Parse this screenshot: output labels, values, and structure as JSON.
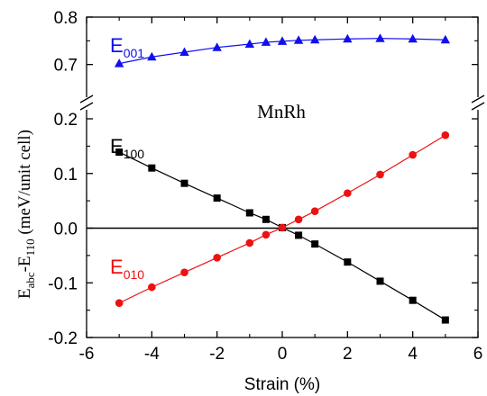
{
  "chart_data": {
    "type": "line",
    "title": "MnRh",
    "xlabel": "Strain (%)",
    "ylabel": {
      "e1": "E",
      "s1": "abc",
      "mid": "-E",
      "s2": "110",
      "unit": " (meV/unit cell)"
    },
    "xlim": [
      -6,
      6
    ],
    "xticks": [
      "-6",
      "-4",
      "-2",
      "0",
      "2",
      "4",
      "6"
    ],
    "ylim_lower": [
      -0.2,
      0.2
    ],
    "yticks_lower": [
      "-0.2",
      "-0.1",
      "0.0",
      "0.1",
      "0.2"
    ],
    "ylim_upper": [
      0.65,
      0.8
    ],
    "yticks_upper": [
      "0.7",
      "0.8"
    ],
    "axis_break": true,
    "zero_line": true,
    "series": [
      {
        "name": "E",
        "sub": "001",
        "color": "#1010ee",
        "marker": "triangle",
        "panel": "upper",
        "x": [
          -5,
          -4,
          -3,
          -2,
          -1,
          -0.5,
          0,
          0.5,
          1,
          2,
          3,
          4,
          5
        ],
        "y": [
          0.702,
          0.716,
          0.726,
          0.736,
          0.743,
          0.747,
          0.749,
          0.751,
          0.752,
          0.754,
          0.755,
          0.754,
          0.752
        ]
      },
      {
        "name": "E",
        "sub": "100",
        "color": "#000000",
        "marker": "square",
        "panel": "lower",
        "x": [
          -5,
          -4,
          -3,
          -2,
          -1,
          -0.5,
          0,
          0.5,
          1,
          2,
          3,
          4,
          5
        ],
        "y": [
          0.139,
          0.11,
          0.082,
          0.055,
          0.028,
          0.016,
          0.001,
          -0.013,
          -0.029,
          -0.062,
          -0.097,
          -0.132,
          -0.168
        ]
      },
      {
        "name": "E",
        "sub": "010",
        "color": "#ee1111",
        "marker": "circle",
        "panel": "lower",
        "x": [
          -5,
          -4,
          -3,
          -2,
          -1,
          -0.5,
          0,
          0.5,
          1,
          2,
          3,
          4,
          5
        ],
        "y": [
          -0.137,
          -0.108,
          -0.081,
          -0.054,
          -0.027,
          -0.012,
          0.001,
          0.016,
          0.031,
          0.064,
          0.098,
          0.134,
          0.17
        ]
      }
    ]
  }
}
